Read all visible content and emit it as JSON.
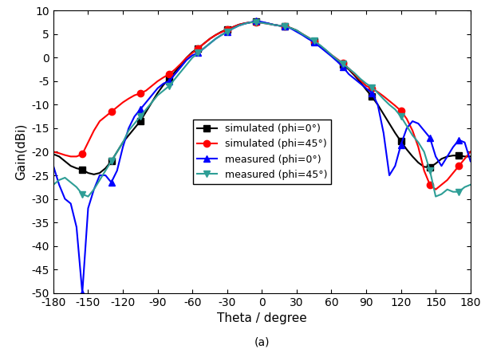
{
  "chart_data": {
    "type": "line",
    "x_label": "Theta / degree",
    "y_label": "Gain(dBi)",
    "annotations": [
      "(a)"
    ],
    "x": [
      -180,
      -175,
      -170,
      -165,
      -160,
      -155,
      -150,
      -145,
      -140,
      -135,
      -130,
      -125,
      -120,
      -115,
      -110,
      -105,
      -100,
      -95,
      -90,
      -85,
      -80,
      -75,
      -70,
      -65,
      -60,
      -55,
      -50,
      -45,
      -40,
      -35,
      -30,
      -25,
      -20,
      -15,
      -10,
      -5,
      0,
      5,
      10,
      15,
      20,
      25,
      30,
      35,
      40,
      45,
      50,
      55,
      60,
      65,
      70,
      75,
      80,
      85,
      90,
      95,
      100,
      105,
      110,
      115,
      120,
      125,
      130,
      135,
      140,
      145,
      150,
      155,
      160,
      165,
      170,
      175,
      180
    ],
    "series": [
      {
        "name": "simulated (phi=0°)",
        "color": "#000000",
        "marker": "square",
        "line_style": "solid",
        "values": [
          -20.5,
          -21,
          -22,
          -23,
          -23.5,
          -23.8,
          -24.5,
          -24.8,
          -24.5,
          -23.5,
          -22,
          -20,
          -18,
          -16.5,
          -15,
          -13.5,
          -11.5,
          -9.5,
          -7.5,
          -5.8,
          -4.5,
          -3,
          -1.5,
          0,
          1.2,
          2,
          3,
          4,
          4.8,
          5.5,
          6,
          6.5,
          7,
          7.3,
          7.5,
          7.6,
          7.5,
          7.3,
          7,
          6.8,
          6.7,
          6.3,
          5.8,
          5,
          4.2,
          3.5,
          2.5,
          1.5,
          0.5,
          -0.5,
          -1.5,
          -2.5,
          -3.8,
          -5.2,
          -6.8,
          -8.3,
          -10,
          -12,
          -14,
          -16,
          -17.8,
          -19.5,
          -21,
          -22.3,
          -23.2,
          -23.3,
          -22.5,
          -21.5,
          -21,
          -20.8,
          -20.8,
          -21,
          -21
        ]
      },
      {
        "name": "simulated (phi=45°)",
        "color": "#ff0000",
        "marker": "circle",
        "line_style": "solid",
        "values": [
          -20,
          -20.3,
          -20.7,
          -21,
          -21,
          -20.5,
          -18,
          -15.5,
          -13.5,
          -12.5,
          -11.5,
          -10.5,
          -9.5,
          -8.7,
          -8,
          -7.6,
          -7,
          -6,
          -5,
          -4.2,
          -3.5,
          -2.5,
          -1.3,
          0,
          1,
          2,
          3,
          4,
          4.8,
          5.4,
          6,
          6.5,
          7,
          7.3,
          7.5,
          7.5,
          7.4,
          7.2,
          7,
          6.8,
          6.7,
          6.3,
          5.7,
          5,
          4.3,
          3.5,
          2.6,
          1.6,
          0.6,
          -0.3,
          -1.2,
          -2.3,
          -3.5,
          -4.8,
          -6,
          -6.5,
          -7.3,
          -8.2,
          -9.2,
          -10.2,
          -11.3,
          -13,
          -15.5,
          -19,
          -24,
          -27,
          -28,
          -27,
          -26,
          -24.5,
          -23,
          -21.5,
          -20
        ]
      },
      {
        "name": "measured (phi=0°)",
        "color": "#0000ff",
        "marker": "triangle_up",
        "line_style": "solid",
        "values": [
          -23,
          -27,
          -30,
          -31,
          -36,
          -50,
          -32,
          -28,
          -25,
          -25,
          -26.5,
          -24,
          -19,
          -15,
          -12.5,
          -11,
          -9.5,
          -8,
          -6.5,
          -5.5,
          -5,
          -3.5,
          -2,
          -0.5,
          0.5,
          1,
          2,
          3,
          4,
          4.8,
          5.5,
          6.2,
          6.8,
          7.2,
          7.5,
          7.8,
          7.6,
          7.3,
          7,
          6.8,
          6.7,
          6.2,
          5.5,
          4.8,
          4,
          3.3,
          2.3,
          1.3,
          0.3,
          -0.8,
          -2,
          -3.5,
          -4.5,
          -5.5,
          -6.5,
          -7.5,
          -10,
          -16,
          -25,
          -23,
          -18.5,
          -15,
          -13.5,
          -14,
          -15.5,
          -17,
          -21,
          -23,
          -21,
          -19,
          -17.5,
          -18,
          -22
        ]
      },
      {
        "name": "measured (phi=45°)",
        "color": "#2e9e96",
        "marker": "triangle_down",
        "line_style": "solid",
        "values": [
          -27,
          -26,
          -25.5,
          -26.5,
          -27.5,
          -29,
          -29.5,
          -28,
          -26,
          -24,
          -22,
          -20,
          -18,
          -15.5,
          -14,
          -12.5,
          -11,
          -9.5,
          -8,
          -7,
          -6,
          -4.5,
          -3,
          -1.5,
          0,
          1,
          2,
          3,
          4,
          4.8,
          5.5,
          6.2,
          6.8,
          7.2,
          7.5,
          7.5,
          7.4,
          7.2,
          7,
          6.8,
          6.7,
          6.3,
          5.8,
          5,
          4.3,
          3.6,
          2.7,
          1.7,
          0.6,
          -0.4,
          -1.3,
          -2.3,
          -3.3,
          -4.5,
          -5.5,
          -6.3,
          -7.5,
          -8.8,
          -10,
          -11,
          -12.5,
          -14.5,
          -16.5,
          -18,
          -20,
          -24,
          -29.5,
          -29,
          -28,
          -28.5,
          -28.5,
          -27.5,
          -27
        ]
      }
    ],
    "xlim": [
      -180,
      180
    ],
    "xticks": [
      -180,
      -150,
      -120,
      -90,
      -60,
      -30,
      0,
      30,
      60,
      90,
      120,
      150,
      180
    ],
    "ylim": [
      -50,
      10
    ],
    "yticks": [
      -50,
      -45,
      -40,
      -35,
      -30,
      -25,
      -20,
      -15,
      -10,
      -5,
      0,
      5,
      10
    ],
    "grid": false,
    "legend": "center"
  }
}
